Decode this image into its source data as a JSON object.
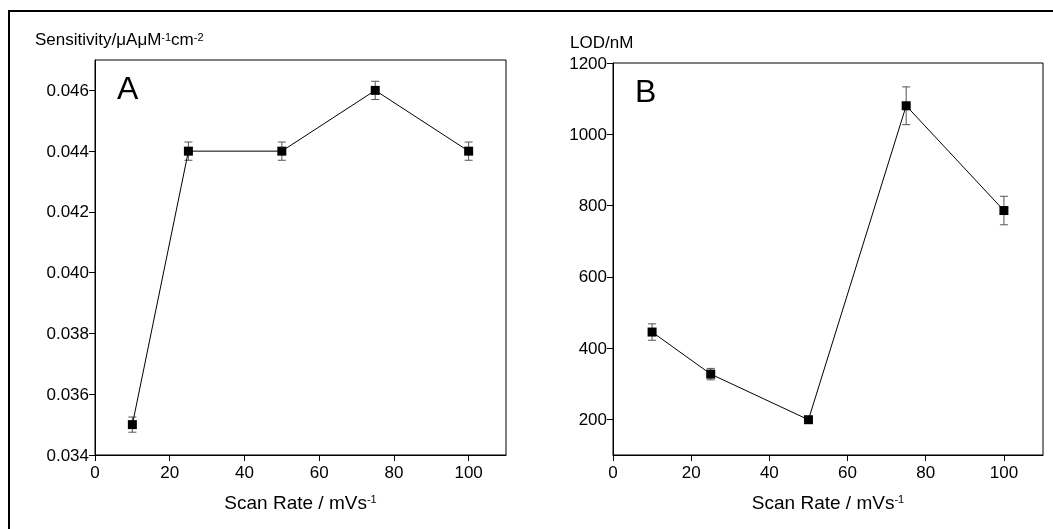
{
  "chart_data": [
    {
      "type": "line",
      "ylabel": "Sensitivity/μAμM$^{-1}$cm$^{-2}$",
      "xlabel": "Scan Rate / mVs$^{-1}$",
      "annotations": [
        "A"
      ],
      "x": [
        10,
        25,
        50,
        75,
        100
      ],
      "series": [
        {
          "color": "#000000",
          "values": [
            0.035,
            0.044,
            0.044,
            0.046,
            0.044
          ],
          "errors": [
            0.00025,
            0.0003,
            0.0003,
            0.0003,
            0.0003
          ]
        }
      ],
      "xlim": [
        0,
        110
      ],
      "xticks": [
        0,
        20,
        40,
        60,
        80,
        100
      ],
      "ylim": [
        0.034,
        0.047
      ],
      "yticks": [
        0.034,
        0.036,
        0.038,
        {
          "value": 0.04,
          "label": "0.040"
        },
        0.042,
        0.044,
        0.046
      ],
      "marker": "square",
      "line_style": "solid",
      "grid": false
    },
    {
      "type": "line",
      "ylabel": "LOD/nM",
      "xlabel": "Scan Rate / mVs$^{-1}$",
      "annotations": [
        "B"
      ],
      "x": [
        10,
        25,
        50,
        75,
        100
      ],
      "series": [
        {
          "color": "#000000",
          "values": [
            445,
            327,
            199,
            1080,
            786
          ],
          "errors": [
            23,
            16,
            5,
            53,
            40
          ]
        }
      ],
      "xlim": [
        0,
        110
      ],
      "xticks": [
        0,
        20,
        40,
        60,
        80,
        100
      ],
      "ylim": [
        100,
        1200
      ],
      "yticks": [
        200,
        400,
        600,
        800,
        1000,
        1200
      ],
      "marker": "square",
      "line_style": "solid",
      "grid": false
    }
  ]
}
